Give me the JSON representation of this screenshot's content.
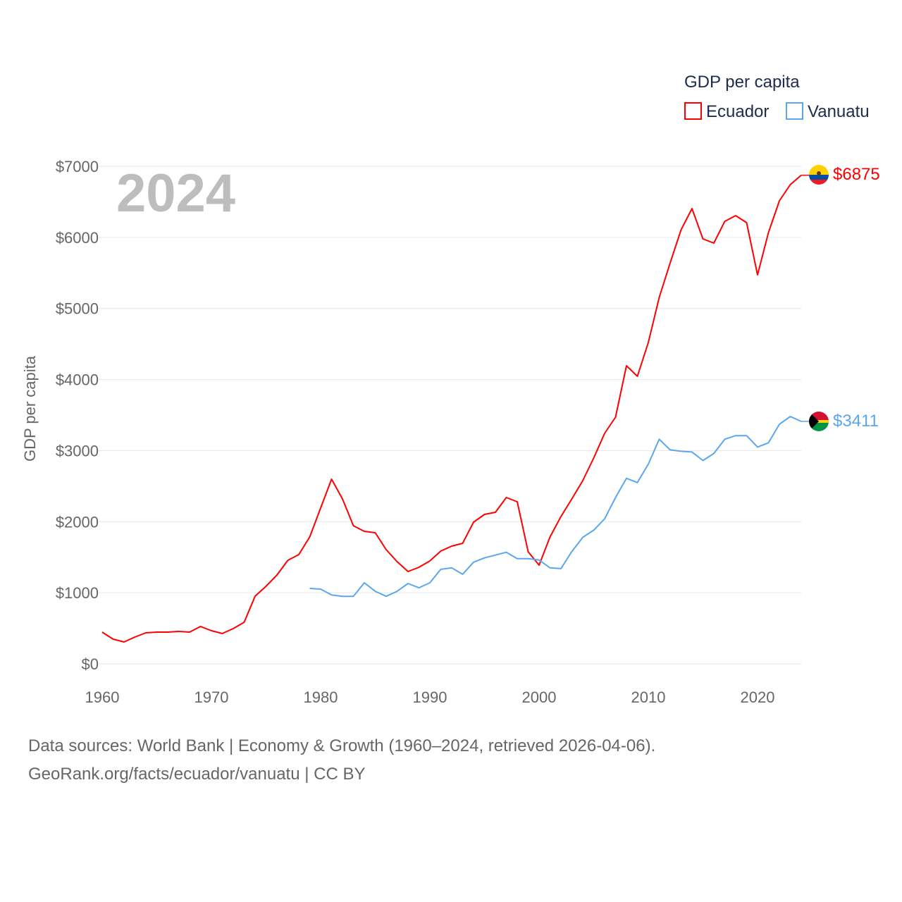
{
  "chart_data": {
    "type": "line",
    "title": "GDP per capita",
    "ylabel": "GDP per capita",
    "xlabel": "",
    "year_watermark": "2024",
    "ylim": [
      0,
      7000
    ],
    "xlim": [
      1960,
      2024
    ],
    "y_ticks": [
      0,
      1000,
      2000,
      3000,
      4000,
      5000,
      6000,
      7000
    ],
    "y_tick_labels": [
      "$0",
      "$1000",
      "$2000",
      "$3000",
      "$4000",
      "$5000",
      "$6000",
      "$7000"
    ],
    "x_ticks": [
      1960,
      1970,
      1980,
      1990,
      2000,
      2010,
      2020
    ],
    "x_tick_labels": [
      "1960",
      "1970",
      "1980",
      "1990",
      "2000",
      "2010",
      "2020"
    ],
    "grid": true,
    "legend_placement": "top-right",
    "series": [
      {
        "name": "Ecuador",
        "color": "#ff0000",
        "end_label": "$6875",
        "start_year": 1960,
        "values": [
          446,
          347,
          307,
          377,
          436,
          446,
          446,
          456,
          446,
          525,
          466,
          426,
          496,
          585,
          952,
          1091,
          1249,
          1457,
          1537,
          1785,
          2191,
          2598,
          2320,
          1943,
          1864,
          1844,
          1606,
          1438,
          1299,
          1358,
          1448,
          1586,
          1656,
          1695,
          1993,
          2102,
          2132,
          2340,
          2280,
          1576,
          1388,
          1785,
          2072,
          2320,
          2578,
          2895,
          3242,
          3470,
          4194,
          4045,
          4521,
          5156,
          5641,
          6107,
          6405,
          5979,
          5919,
          6226,
          6306,
          6207,
          5473,
          6068,
          6514,
          6742,
          6875
        ]
      },
      {
        "name": "Vanuatu",
        "color": "#5aa7ef",
        "end_label": "$3411",
        "start_year": 1979,
        "values": [
          1061,
          1051,
          970,
          950,
          950,
          1140,
          1020,
          950,
          1020,
          1130,
          1070,
          1140,
          1330,
          1350,
          1260,
          1430,
          1490,
          1530,
          1570,
          1480,
          1480,
          1460,
          1350,
          1340,
          1580,
          1780,
          1880,
          2040,
          2340,
          2610,
          2550,
          2810,
          3160,
          3010,
          2990,
          2980,
          2860,
          2960,
          3160,
          3210,
          3210,
          3050,
          3110,
          3370,
          3480,
          3411
        ]
      }
    ]
  },
  "footer": {
    "line1": "Data sources: World Bank | Economy & Growth (1960–2024, retrieved 2026-04-06).",
    "line2": "GeoRank.org/facts/ecuador/vanuatu | CC BY"
  }
}
